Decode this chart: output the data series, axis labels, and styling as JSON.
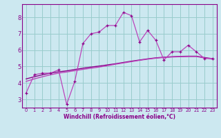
{
  "xlabel": "Windchill (Refroidissement éolien,°C)",
  "bg_color": "#cce8f0",
  "grid_color": "#99cccc",
  "line_color": "#880088",
  "line_color2": "#bb44bb",
  "x_data": [
    0,
    1,
    2,
    3,
    4,
    5,
    6,
    7,
    8,
    9,
    10,
    11,
    12,
    13,
    14,
    15,
    16,
    17,
    18,
    19,
    20,
    21,
    22,
    23
  ],
  "y_jagged": [
    3.4,
    4.5,
    4.6,
    4.6,
    4.8,
    2.7,
    4.1,
    6.4,
    7.0,
    7.1,
    7.5,
    7.5,
    8.3,
    8.1,
    6.5,
    7.2,
    6.6,
    5.4,
    5.9,
    5.9,
    6.3,
    5.9,
    5.5,
    5.5
  ],
  "y_smooth1": [
    4.25,
    4.38,
    4.5,
    4.6,
    4.68,
    4.74,
    4.82,
    4.9,
    4.97,
    5.03,
    5.1,
    5.17,
    5.25,
    5.33,
    5.4,
    5.47,
    5.53,
    5.57,
    5.6,
    5.62,
    5.63,
    5.63,
    5.55,
    5.48
  ],
  "y_smooth2": [
    4.1,
    4.25,
    4.38,
    4.5,
    4.6,
    4.67,
    4.75,
    4.83,
    4.9,
    4.97,
    5.05,
    5.14,
    5.22,
    5.3,
    5.38,
    5.45,
    5.51,
    5.55,
    5.58,
    5.6,
    5.61,
    5.61,
    5.52,
    5.45
  ],
  "xlim": [
    -0.5,
    23.5
  ],
  "ylim": [
    2.5,
    8.8
  ],
  "yticks": [
    3,
    4,
    5,
    6,
    7,
    8
  ],
  "xticks": [
    0,
    1,
    2,
    3,
    4,
    5,
    6,
    7,
    8,
    9,
    10,
    11,
    12,
    13,
    14,
    15,
    16,
    17,
    18,
    19,
    20,
    21,
    22,
    23
  ]
}
